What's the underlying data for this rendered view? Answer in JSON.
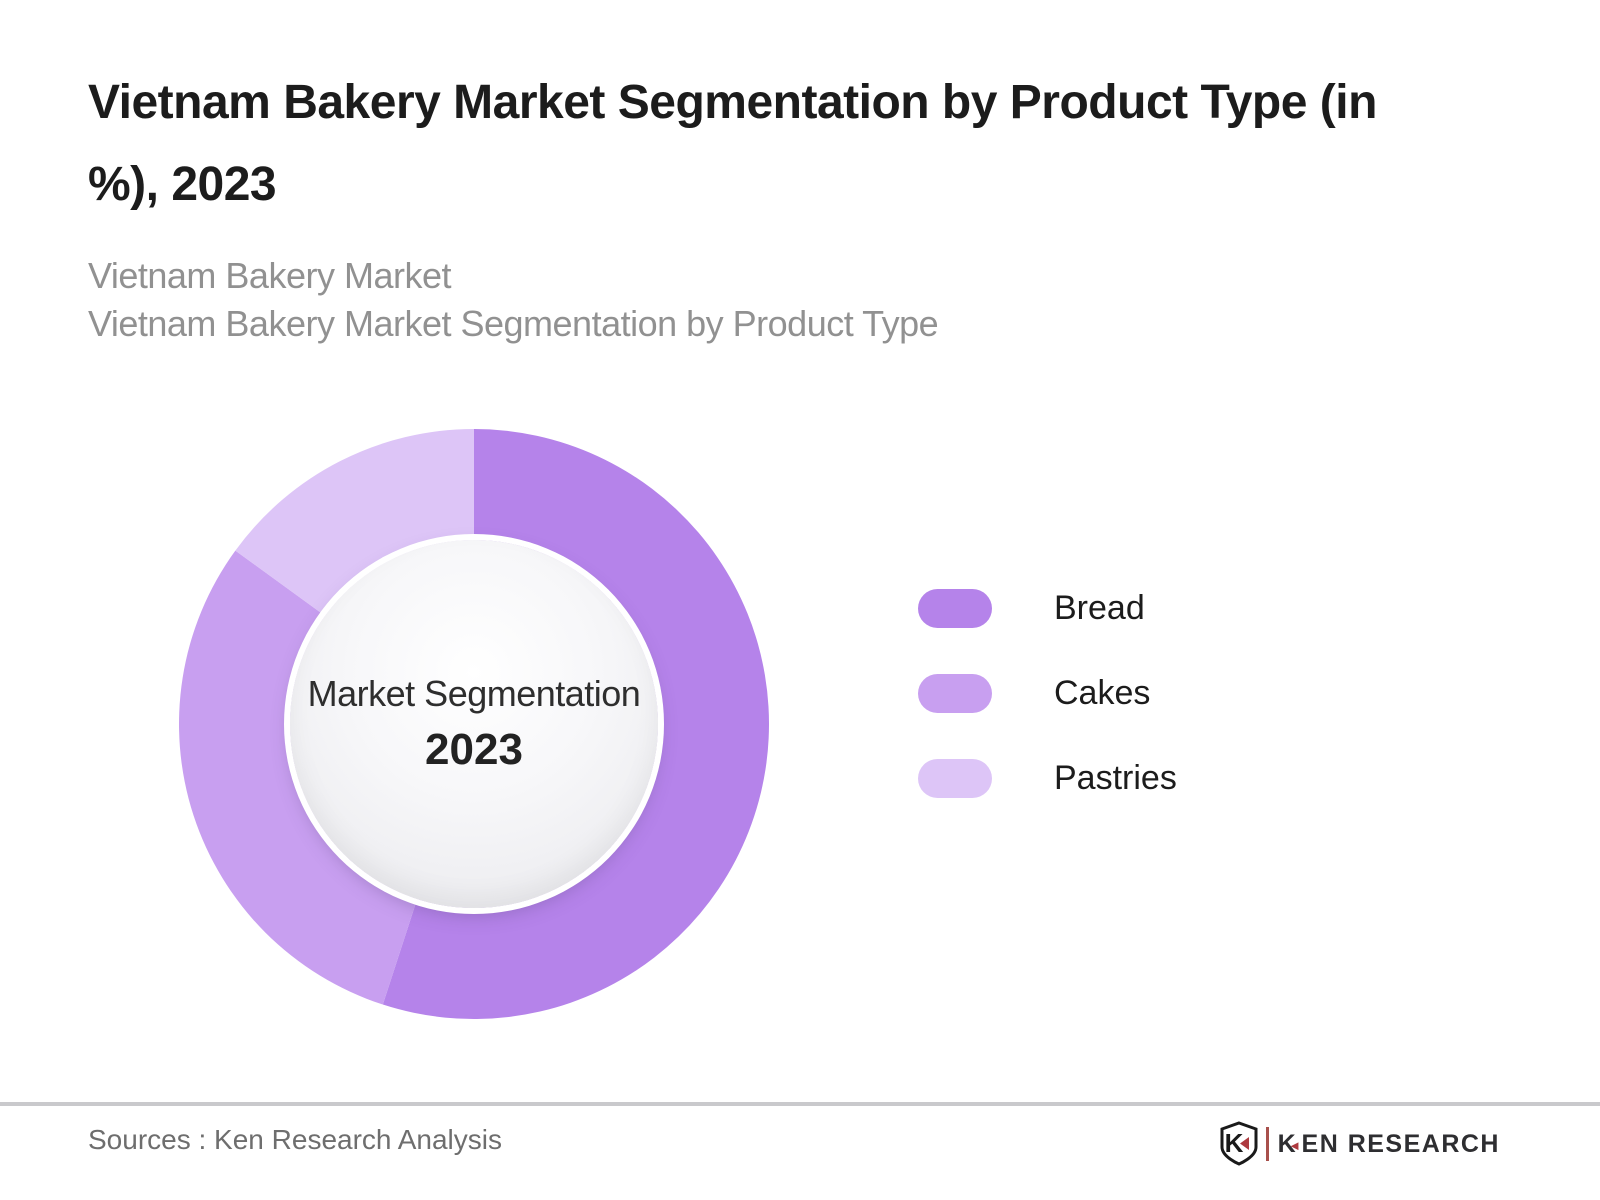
{
  "header": {
    "title_lines": [
      "Vietnam Bakery Market Segmentation by Product Type (in",
      "%), 2023"
    ],
    "subtitle_lines": [
      "Vietnam Bakery Market",
      "Vietnam Bakery Market Segmentation by Product Type"
    ]
  },
  "chart_data": {
    "type": "pie",
    "donut": true,
    "title": "Vietnam Bakery Market Segmentation by Product Type (in %), 2023",
    "units": "%",
    "year": "2023",
    "center_label": "Market Segmentation",
    "center_year": "2023",
    "start_angle_deg": 0,
    "legend_position": "right",
    "series": [
      {
        "name": "Bread",
        "value": 55,
        "color": "#b583ea"
      },
      {
        "name": "Cakes",
        "value": 30,
        "color": "#c89ff0"
      },
      {
        "name": "Pastries",
        "value": 15,
        "color": "#ddc5f7"
      }
    ],
    "note": "values estimated from arc angles (no data labels shown)"
  },
  "footer": {
    "sources": "Sources : Ken Research Analysis",
    "logo": {
      "shield_letter": "K",
      "word_k": "K",
      "word_triangle": "◄",
      "word_rest": "EN RESEARCH",
      "accent_color": "#ae3a3f"
    }
  }
}
